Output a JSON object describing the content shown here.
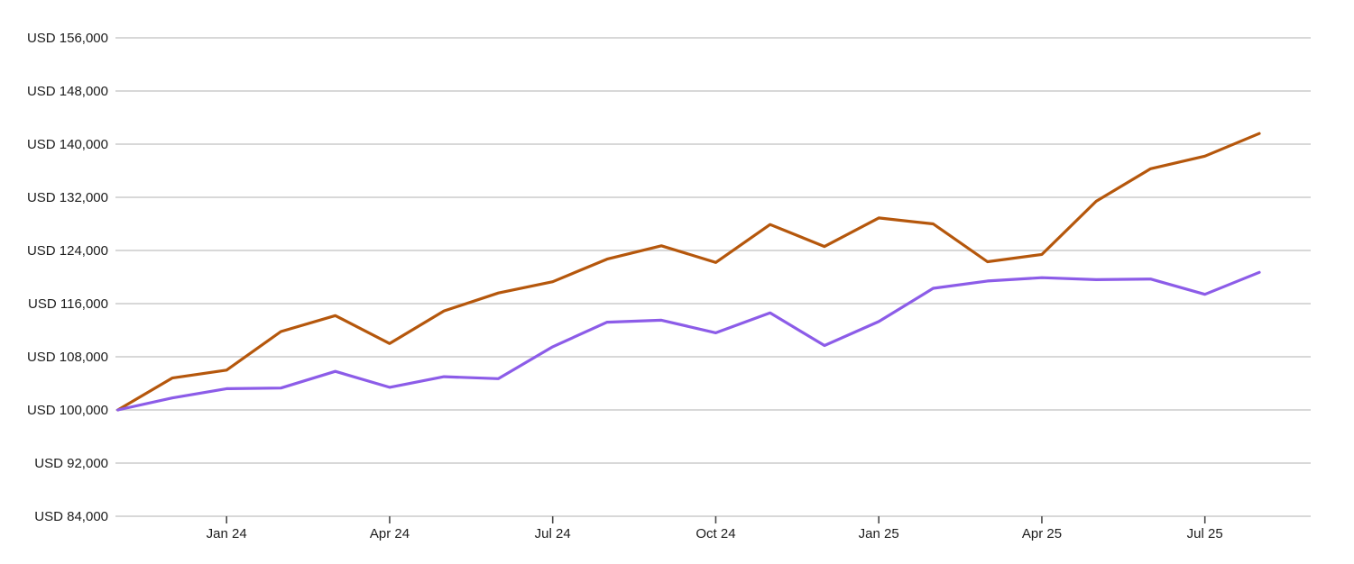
{
  "chart_data": {
    "type": "line",
    "title": "",
    "currency_prefix": "USD",
    "baseline_value": 100000,
    "y_axis": {
      "tick_labels": [
        "USD 156,000",
        "USD 148,000",
        "USD 140,000",
        "USD 132,000",
        "USD 124,000",
        "USD 116,000",
        "USD 108,000",
        "USD 100,000",
        "USD 92,000",
        "USD 84,000"
      ],
      "tick_values": [
        156000,
        148000,
        140000,
        132000,
        124000,
        116000,
        108000,
        100000,
        92000,
        84000
      ],
      "min": 84000,
      "max": 156000,
      "step": 8000,
      "grid": true
    },
    "x_axis": {
      "tick_labels": [
        "Jan 24",
        "Apr 24",
        "Jul 24",
        "Oct 24",
        "Jan 25",
        "Apr 25",
        "Jul 25"
      ],
      "tick_month_indices": [
        2,
        5,
        8,
        11,
        14,
        17,
        20
      ]
    },
    "months": [
      "Nov 23",
      "Dec 23",
      "Jan 24",
      "Feb 24",
      "Mar 24",
      "Apr 24",
      "May 24",
      "Jun 24",
      "Jul 24",
      "Aug 24",
      "Sep 24",
      "Oct 24",
      "Nov 24",
      "Dec 24",
      "Jan 25",
      "Feb 25",
      "Mar 25",
      "Apr 25",
      "May 25",
      "Jun 25",
      "Jul 25",
      "Aug 25"
    ],
    "series": [
      {
        "name": "orange-series",
        "color": "#b5570c",
        "values": [
          100000,
          104800,
          106000,
          111800,
          114200,
          110000,
          114900,
          117600,
          119300,
          122700,
          124700,
          122200,
          127900,
          124600,
          128900,
          128000,
          122300,
          123400,
          131400,
          136300,
          138200,
          141600
        ]
      },
      {
        "name": "purple-series",
        "color": "#8c5ce8",
        "values": [
          100000,
          101800,
          103200,
          103300,
          105800,
          103400,
          105000,
          104700,
          109500,
          113200,
          113500,
          111600,
          114600,
          109700,
          113300,
          118300,
          119400,
          119900,
          119600,
          119700,
          117400,
          120700
        ]
      }
    ],
    "legend": "none"
  },
  "colors": {
    "background": "#ffffff",
    "gridline": "#d8d8d8",
    "axis_tick": "#4a4a4a",
    "label_text": "#1c1c1c",
    "series_1": "#b5570c",
    "series_2": "#8c5ce8"
  }
}
